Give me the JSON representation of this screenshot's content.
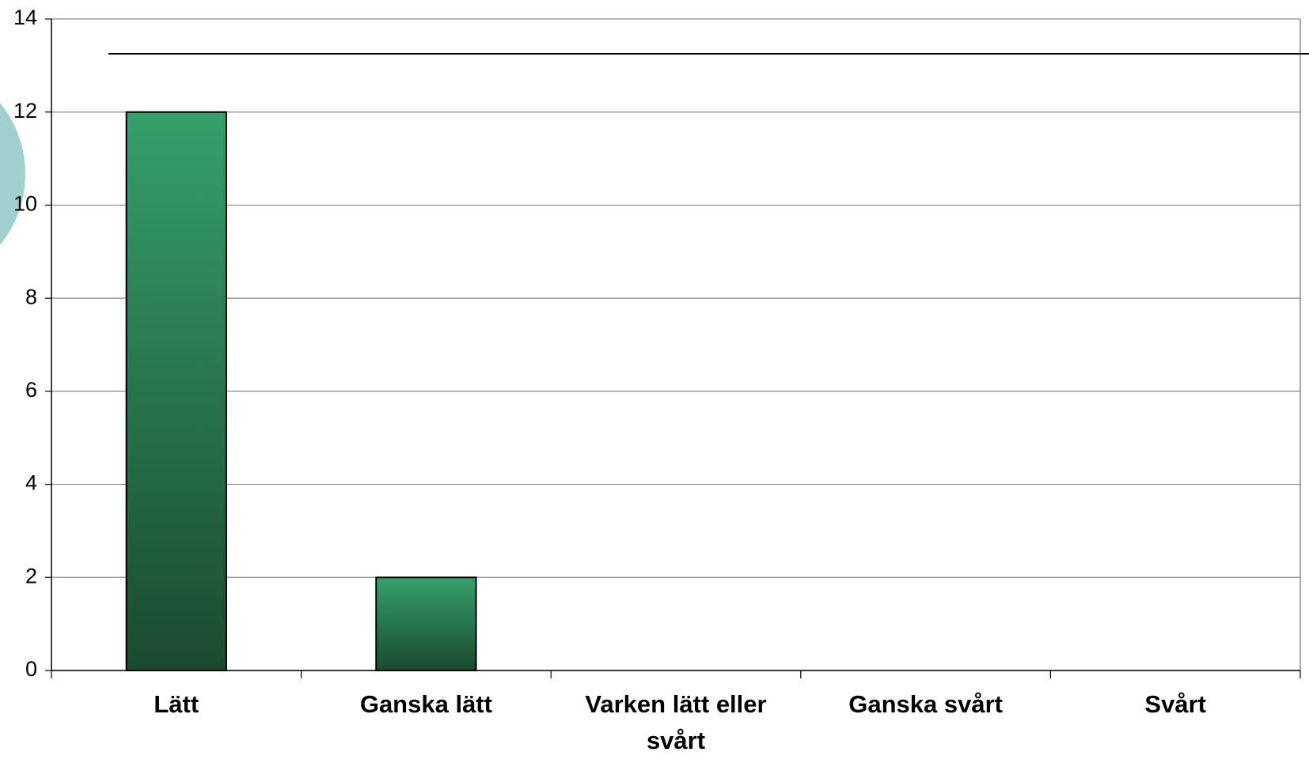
{
  "chart_data": {
    "type": "bar",
    "categories": [
      "Lätt",
      "Ganska lätt",
      "Varken lätt eller svårt",
      "Ganska svårt",
      "Svårt"
    ],
    "values": [
      12,
      2,
      0,
      0,
      0
    ],
    "color": "#2f9462",
    "ylim": [
      0,
      14
    ],
    "yticks": [
      0,
      2,
      4,
      6,
      8,
      10,
      12,
      14
    ],
    "grid": true
  }
}
